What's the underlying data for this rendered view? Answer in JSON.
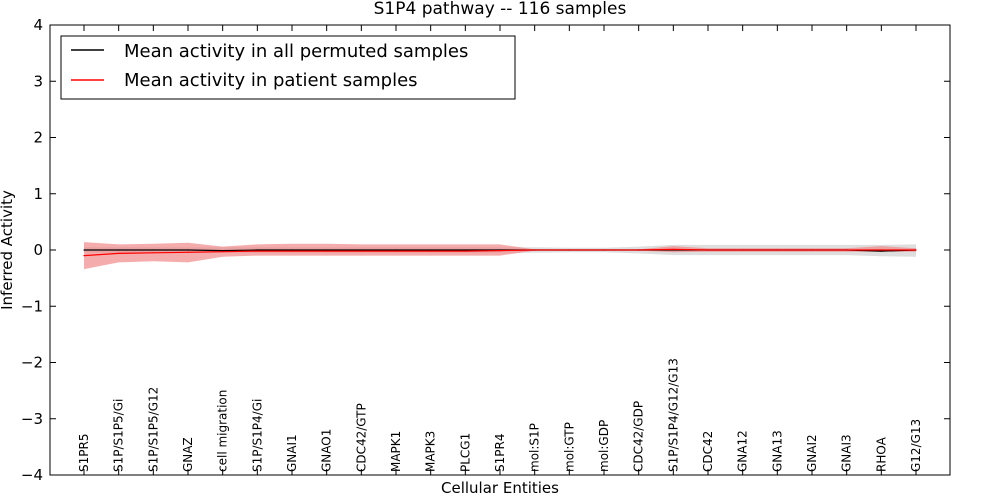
{
  "chart_data": {
    "type": "line",
    "title": "S1P4 pathway -- 116 samples",
    "xlabel": "Cellular Entities",
    "ylabel": "Inferred Activity",
    "ylim": [
      -4,
      4
    ],
    "yticks": [
      4,
      3,
      2,
      1,
      0,
      -1,
      -2,
      -3,
      -4
    ],
    "ytick_labels": [
      "4",
      "3",
      "2",
      "1",
      "0",
      "−1",
      "−2",
      "−3",
      "−4"
    ],
    "grid": false,
    "legend_position": "top-left",
    "categories": [
      "S1PR5",
      "S1P/S1P5/Gi",
      "S1P/S1P5/G12",
      "GNAZ",
      "cell migration",
      "S1P/S1P4/Gi",
      "GNAI1",
      "GNAO1",
      "CDC42/GTP",
      "MAPK1",
      "MAPK3",
      "PLCG1",
      "S1PR4",
      "mol:S1P",
      "mol:GTP",
      "mol:GDP",
      "CDC42/GDP",
      "S1P/S1P4/G12/G13",
      "CDC42",
      "GNA12",
      "GNA13",
      "GNAI2",
      "GNAI3",
      "RHOA",
      "G12/G13"
    ],
    "series": [
      {
        "name": "Mean activity in all permuted samples",
        "color": "#000000",
        "values": [
          0.0,
          0.0,
          0.0,
          0.0,
          -0.01,
          0.0,
          0.0,
          0.0,
          0.0,
          0.0,
          0.0,
          0.0,
          0.0,
          0.0,
          0.0,
          0.0,
          0.0,
          0.0,
          0.0,
          0.0,
          0.0,
          0.0,
          0.0,
          -0.02,
          0.0
        ],
        "band_lower": [
          -0.05,
          -0.05,
          -0.05,
          -0.05,
          -0.05,
          -0.05,
          -0.05,
          -0.05,
          -0.05,
          -0.05,
          -0.05,
          -0.05,
          -0.05,
          -0.05,
          -0.04,
          -0.04,
          -0.06,
          -0.09,
          -0.09,
          -0.09,
          -0.09,
          -0.09,
          -0.09,
          -0.11,
          -0.12
        ],
        "band_upper": [
          0.05,
          0.05,
          0.05,
          0.05,
          0.05,
          0.05,
          0.05,
          0.05,
          0.05,
          0.05,
          0.05,
          0.05,
          0.05,
          0.05,
          0.04,
          0.04,
          0.06,
          0.09,
          0.09,
          0.09,
          0.09,
          0.09,
          0.09,
          0.09,
          0.1
        ],
        "band_color": "#d3d3d3"
      },
      {
        "name": "Mean activity in patient samples",
        "color": "#ff0000",
        "values": [
          -0.1,
          -0.06,
          -0.05,
          -0.04,
          -0.03,
          -0.02,
          -0.02,
          -0.02,
          -0.02,
          -0.02,
          -0.02,
          -0.02,
          -0.01,
          0.0,
          0.0,
          0.0,
          0.0,
          0.01,
          0.0,
          0.0,
          0.0,
          0.0,
          0.0,
          0.0,
          0.0
        ],
        "band_lower": [
          -0.34,
          -0.22,
          -0.2,
          -0.22,
          -0.12,
          -0.1,
          -0.1,
          -0.1,
          -0.1,
          -0.1,
          -0.1,
          -0.1,
          -0.1,
          -0.01,
          0.0,
          0.0,
          -0.01,
          -0.04,
          -0.03,
          -0.03,
          -0.03,
          -0.03,
          -0.03,
          -0.03,
          -0.03
        ],
        "band_upper": [
          0.14,
          0.1,
          0.11,
          0.13,
          0.06,
          0.1,
          0.11,
          0.11,
          0.1,
          0.1,
          0.1,
          0.1,
          0.1,
          0.01,
          0.0,
          0.0,
          0.01,
          0.07,
          0.03,
          0.03,
          0.03,
          0.03,
          0.03,
          0.07,
          0.03
        ],
        "band_color": "#f08080"
      }
    ]
  }
}
